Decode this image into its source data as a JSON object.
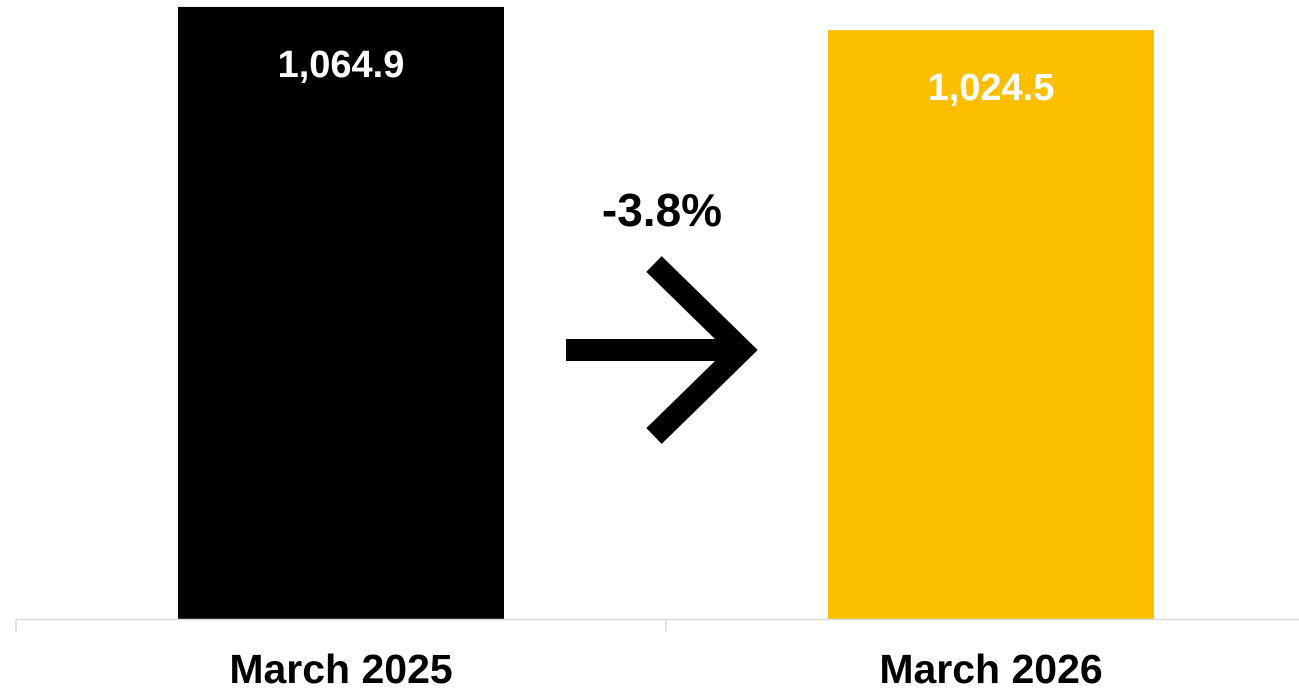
{
  "chart_data": {
    "type": "bar",
    "title": "",
    "xlabel": "",
    "ylabel": "",
    "categories": [
      "March 2025",
      "March 2026"
    ],
    "values": [
      1064.9,
      1024.5
    ],
    "value_labels": [
      "1,064.9",
      "1,024.5"
    ],
    "colors": [
      "#000000",
      "#FBBF00"
    ],
    "ylim": [
      0,
      1070
    ],
    "grid": false,
    "legend": "none",
    "change": {
      "label": "-3.8%",
      "icon": "arrow-right-icon"
    }
  },
  "colors": {
    "axis": "#d9d9d9",
    "value_text": "#ffffff",
    "category_text": "#000000"
  }
}
